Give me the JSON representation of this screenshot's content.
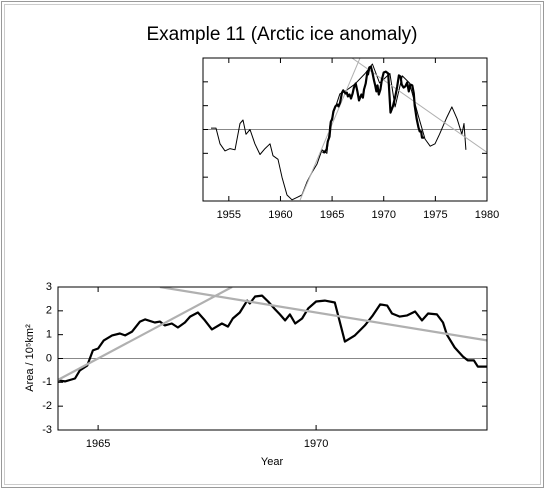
{
  "chart_data": [
    {
      "type": "line",
      "title": "Example 11 (Arctic ice anomaly)",
      "xlim": [
        1952.5,
        1980
      ],
      "xticks": [
        1955,
        1960,
        1965,
        1970,
        1975,
        1980
      ],
      "ylim": [
        -3,
        3
      ],
      "yticks": [
        -3,
        -2,
        -1,
        0,
        1,
        2,
        3
      ],
      "ytick_labels": false,
      "zero_line": true,
      "series": [
        {
          "color": "#000000",
          "x": [
            1953.27,
            1953.76,
            1954.15,
            1954.63,
            1955.11,
            1955.6,
            1956.08,
            1956.37,
            1956.66,
            1957.05,
            1957.53,
            1958.02,
            1958.5,
            1958.99,
            1959.28,
            1959.76,
            1960.15,
            1960.63,
            1961.12,
            1961.6,
            1962.08,
            1962.57,
            1963.05,
            1963.54,
            1964.02,
            1964.5,
            1964.8,
            1965.76,
            1966.25,
            1967.2,
            1968.2,
            1968.9,
            1969.6,
            1970.6,
            1971.1,
            1971.8,
            1972.5,
            1973.3,
            1974.0,
            1974.5,
            1974.96,
            1975.4,
            1976.1,
            1976.6,
            1977.1,
            1977.57,
            1977.77,
            1977.96
          ],
          "values": [
            0.06,
            0.06,
            -0.6,
            -0.9,
            -0.8,
            -0.85,
            0.25,
            0.4,
            -0.2,
            0,
            -0.6,
            -1.05,
            -0.8,
            -0.6,
            -1.1,
            -1.25,
            -2.0,
            -2.75,
            -2.95,
            -2.85,
            -2.75,
            -2.2,
            -1.8,
            -1.45,
            -0.85,
            -1.0,
            0.25,
            1.5,
            1.6,
            1.9,
            2.35,
            2.75,
            1.95,
            2.35,
            0.95,
            2.25,
            1.95,
            0.65,
            -0.4,
            -0.7,
            -0.6,
            -0.2,
            0.5,
            0.95,
            0.45,
            -0.2,
            0.25,
            -0.85
          ]
        },
        {
          "color": "#b0b0b0",
          "x": [
            1961.9,
            1967.7
          ],
          "values": [
            -2.96,
            3
          ]
        },
        {
          "color": "#b0b0b0",
          "x": [
            1966.73,
            1980
          ],
          "values": [
            3.06,
            -0.96
          ]
        }
      ]
    },
    {
      "type": "line",
      "xlabel": "Year",
      "ylabel": "Area / 10⁵km²",
      "xlim": [
        1964.08,
        1973.92
      ],
      "xticks": [
        1965,
        1970
      ],
      "ylim": [
        -3,
        3
      ],
      "yticks": [
        -3,
        -2,
        -1,
        0,
        1,
        2,
        3
      ],
      "zero_line": true,
      "series": [
        {
          "color": "#000000",
          "x": [
            1964.08,
            1964.24,
            1964.47,
            1964.58,
            1964.75,
            1964.88,
            1965.0,
            1965.13,
            1965.32,
            1965.5,
            1965.62,
            1965.78,
            1965.96,
            1966.08,
            1966.3,
            1966.42,
            1966.53,
            1966.69,
            1966.83,
            1966.99,
            1967.11,
            1967.29,
            1967.45,
            1967.61,
            1967.84,
            1967.98,
            1968.09,
            1968.25,
            1968.42,
            1968.48,
            1968.6,
            1968.76,
            1968.9,
            1969.06,
            1969.17,
            1969.29,
            1969.4,
            1969.52,
            1969.68,
            1969.82,
            1970.0,
            1970.2,
            1970.43,
            1970.66,
            1970.89,
            1971.12,
            1971.3,
            1971.47,
            1971.63,
            1971.74,
            1971.92,
            1972.09,
            1972.27,
            1972.43,
            1972.57,
            1972.77,
            1972.91,
            1973.0,
            1973.18,
            1973.37,
            1973.48,
            1973.62,
            1973.71,
            1973.92
          ],
          "values": [
            -0.92,
            -0.96,
            -0.84,
            -0.5,
            -0.3,
            0.34,
            0.42,
            0.76,
            0.97,
            1.05,
            0.97,
            1.13,
            1.55,
            1.64,
            1.51,
            1.55,
            1.39,
            1.47,
            1.3,
            1.51,
            1.76,
            1.93,
            1.6,
            1.22,
            1.47,
            1.34,
            1.68,
            1.93,
            2.43,
            2.31,
            2.6,
            2.64,
            2.39,
            2.06,
            1.85,
            1.6,
            1.85,
            1.47,
            1.68,
            2.1,
            2.39,
            2.43,
            2.35,
            0.71,
            0.97,
            1.39,
            1.81,
            2.27,
            2.22,
            1.89,
            1.76,
            1.81,
            1.97,
            1.6,
            1.89,
            1.85,
            1.51,
            1.0,
            0.46,
            0.08,
            -0.08,
            -0.08,
            -0.34,
            -0.34
          ]
        },
        {
          "color": "#b0b0b0",
          "x": [
            1964.08,
            1968.07
          ],
          "values": [
            -0.9,
            3
          ]
        },
        {
          "color": "#b0b0b0",
          "x": [
            1966.42,
            1973.92
          ],
          "values": [
            3,
            0.76
          ]
        }
      ]
    }
  ]
}
